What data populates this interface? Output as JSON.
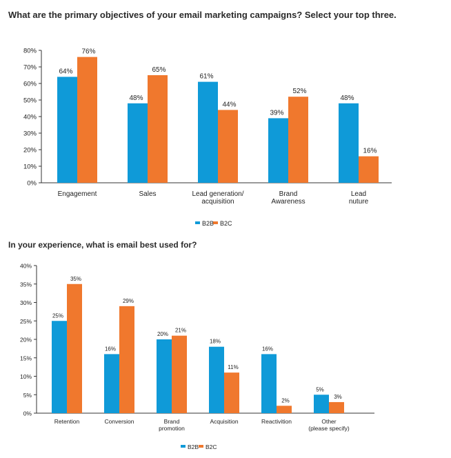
{
  "chart_data": [
    {
      "type": "bar",
      "title": "What are the primary objectives of your email marketing campaigns? Select your top three.",
      "categories": [
        [
          "Engagement"
        ],
        [
          "Sales"
        ],
        [
          "Lead generation/",
          "acquisition"
        ],
        [
          "Brand",
          "Awareness"
        ],
        [
          "Lead",
          "nuture"
        ]
      ],
      "series": [
        {
          "name": "B2B",
          "values": [
            64,
            48,
            61,
            39,
            48
          ]
        },
        {
          "name": "B2C",
          "values": [
            76,
            65,
            44,
            52,
            16
          ]
        }
      ],
      "ylim": [
        0,
        80
      ],
      "yticks": [
        "0%",
        "10%",
        "20%",
        "30%",
        "40%",
        "50%",
        "60%",
        "70%",
        "80%"
      ],
      "value_suffix": "%",
      "legend": "bottom-center"
    },
    {
      "type": "bar",
      "title": "In your experience, what is email best used for?",
      "categories": [
        [
          "Retention"
        ],
        [
          "Conversion"
        ],
        [
          "Brand",
          "promotion"
        ],
        [
          "Acquisition"
        ],
        [
          "Reactivition"
        ],
        [
          "Other",
          "(please specify)"
        ]
      ],
      "series": [
        {
          "name": "B2B",
          "values": [
            25,
            16,
            20,
            18,
            16,
            5
          ]
        },
        {
          "name": "B2C",
          "values": [
            35,
            29,
            21,
            11,
            2,
            3
          ]
        }
      ],
      "ylim": [
        0,
        40
      ],
      "yticks": [
        "0%",
        "5%",
        "10%",
        "15%",
        "20%",
        "25%",
        "30%",
        "35%",
        "40%"
      ],
      "value_suffix": "%",
      "legend": "bottom-center"
    }
  ],
  "colors": {
    "B2B": "#0f9ad8",
    "B2C": "#f0782d",
    "axis": "#333333"
  }
}
